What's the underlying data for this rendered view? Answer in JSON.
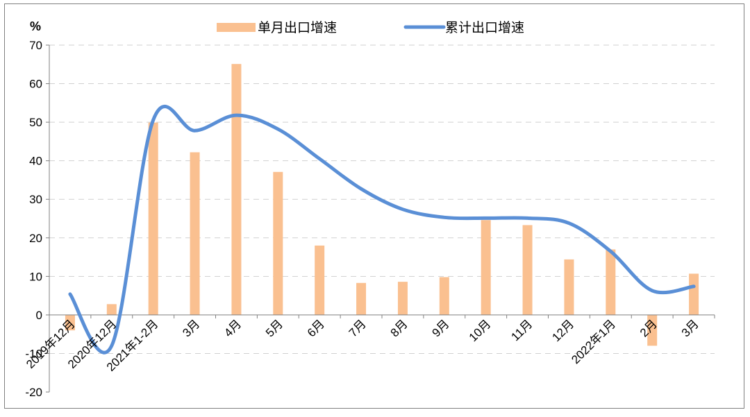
{
  "chart_data": {
    "type": "bar+line",
    "unit": "%",
    "categories": [
      "2019年12月",
      "2020年12月",
      "2021年1-2月",
      "3月",
      "4月",
      "5月",
      "6月",
      "7月",
      "8月",
      "9月",
      "10月",
      "11月",
      "12月",
      "2022年1月",
      "2月",
      "3月"
    ],
    "series": [
      {
        "name": "单月出口增速",
        "kind": "bar",
        "color": "#fac090",
        "values": [
          -4,
          2.8,
          49.9,
          42.2,
          65.1,
          37.1,
          18,
          8.3,
          8.6,
          9.8,
          24.6,
          23.3,
          14.4,
          17,
          -8,
          10.7
        ]
      },
      {
        "name": "累计出口增速",
        "kind": "line",
        "color": "#5a8fd6",
        "values": [
          5.4,
          -8,
          50.6,
          47.8,
          51.8,
          48.2,
          40.5,
          32.7,
          27.4,
          25.3,
          25.1,
          25.1,
          23.8,
          16.5,
          6.3,
          7.4
        ]
      }
    ],
    "ylim": [
      -20,
      70
    ],
    "yticks": [
      -20,
      -10,
      0,
      10,
      20,
      30,
      40,
      50,
      60,
      70
    ],
    "legend_position": "top-center",
    "grid": true
  }
}
